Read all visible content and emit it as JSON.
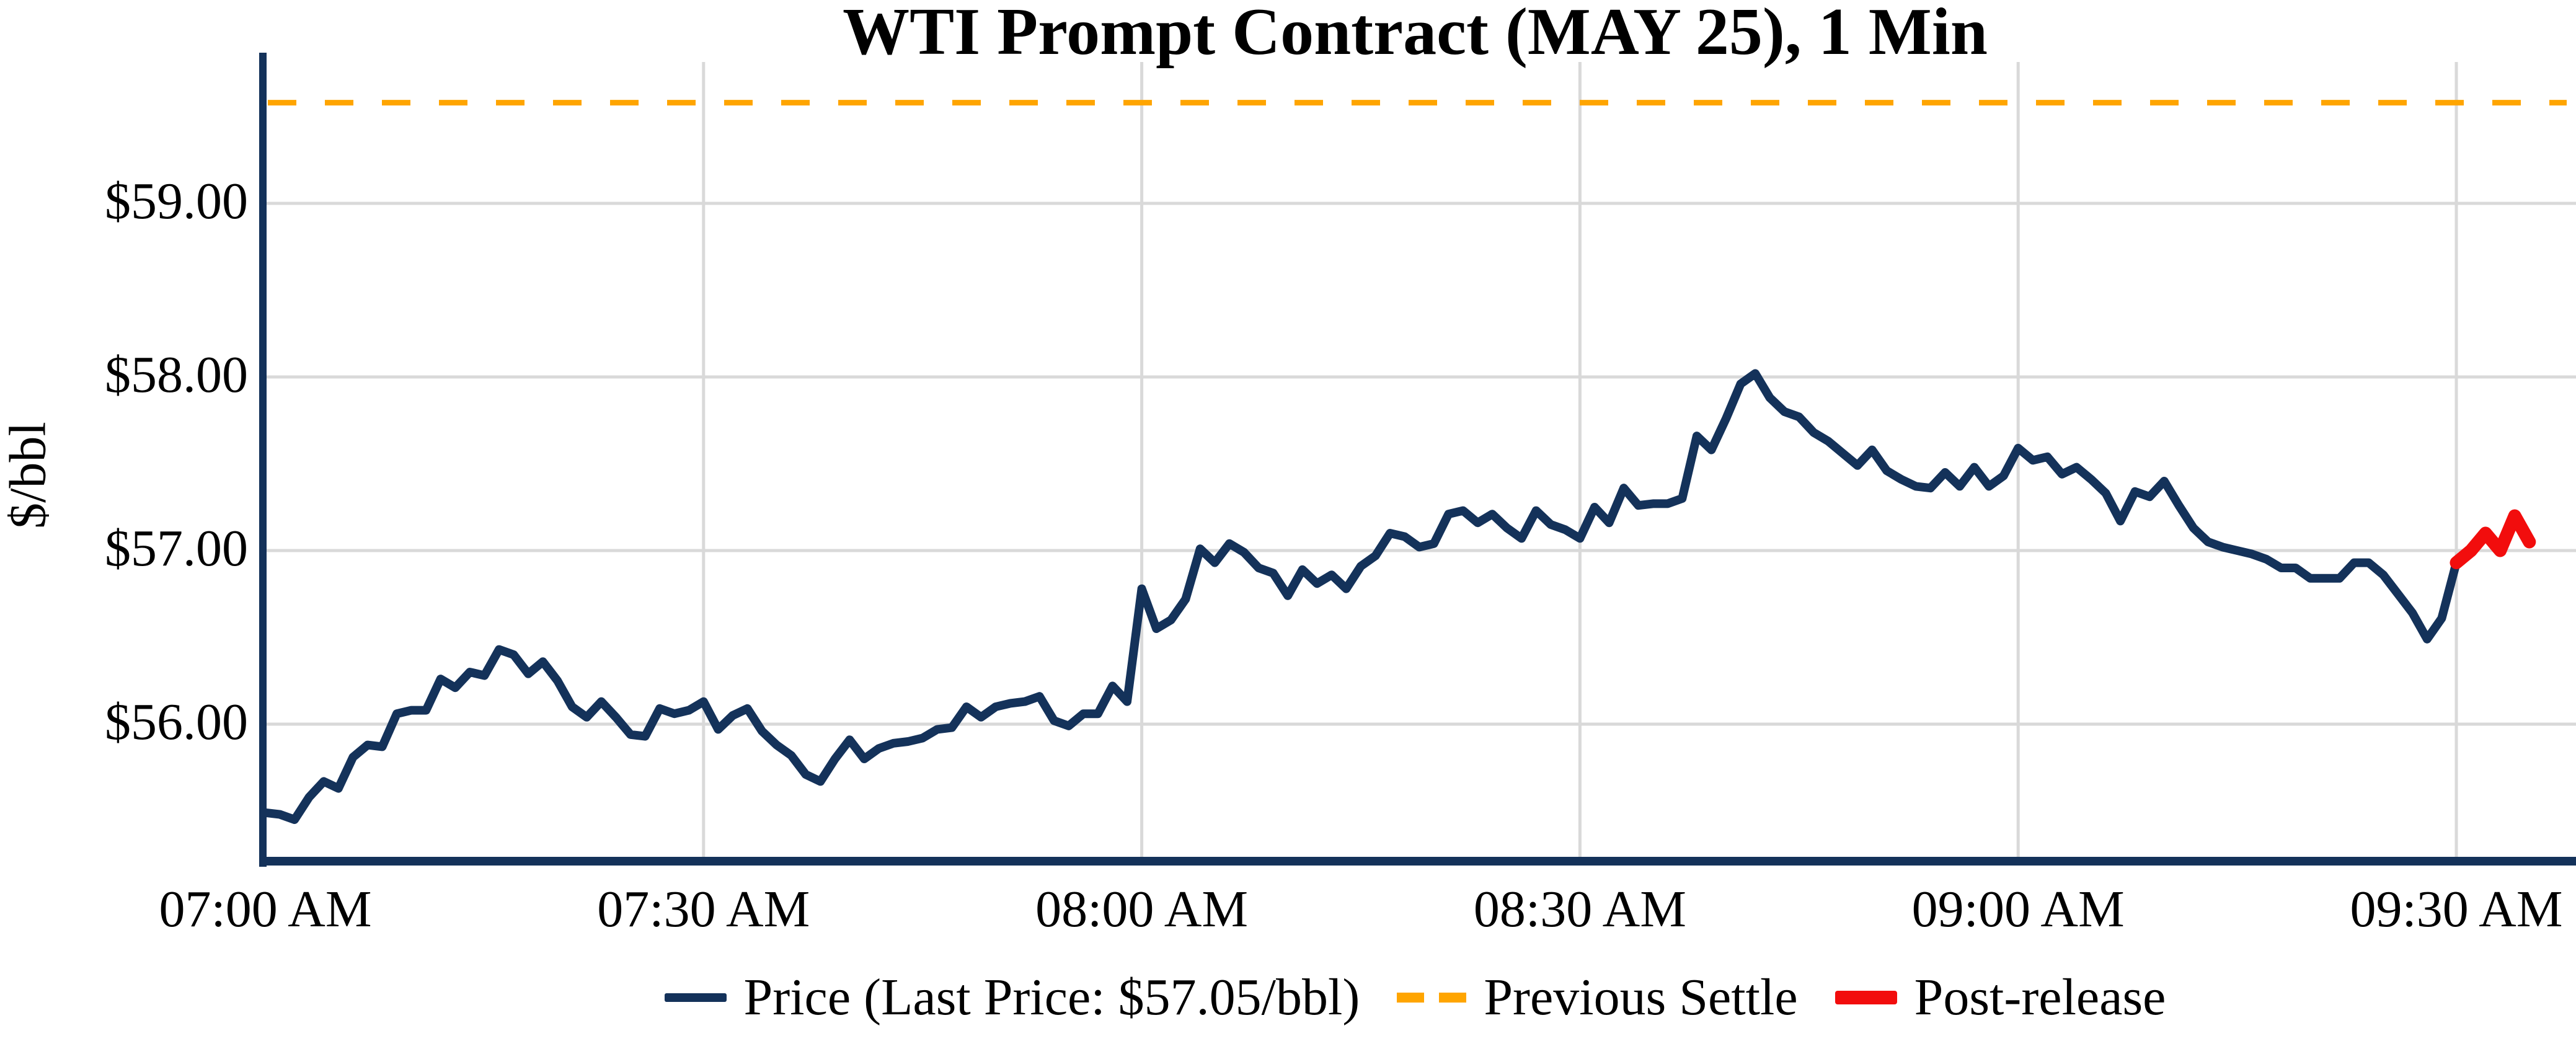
{
  "title": "WTI Prompt Contract (MAY 25), 1 Min",
  "colors": {
    "price_line": "#14325a",
    "post_release_line": "#f20d0d",
    "previous_settle_line": "#ffa500",
    "gridline": "#d9d9d9",
    "axis_spine": "#14325a",
    "text": "#000000"
  },
  "y_axis": {
    "label": "$/bbl",
    "ticks": [
      {
        "value": 59,
        "label": "$59.00"
      },
      {
        "value": 58,
        "label": "$58.00"
      },
      {
        "value": 57,
        "label": "$57.00"
      },
      {
        "value": 56,
        "label": "$56.00"
      }
    ]
  },
  "x_axis": {
    "ticks": [
      {
        "minute": 0,
        "label": "07:00 AM"
      },
      {
        "minute": 30,
        "label": "07:30 AM"
      },
      {
        "minute": 60,
        "label": "08:00 AM"
      },
      {
        "minute": 90,
        "label": "08:30 AM"
      },
      {
        "minute": 120,
        "label": "09:00 AM"
      },
      {
        "minute": 150,
        "label": "09:30 AM"
      }
    ]
  },
  "legend": {
    "price_label": "Price (Last Price: $57.05/bbl)",
    "settle_label": "Previous Settle",
    "post_label": "Post-release"
  },
  "chart_data": {
    "type": "line",
    "title": "WTI Prompt Contract (MAY 25), 1 Min",
    "xlabel": "",
    "ylabel": "$/bbl",
    "x_start_time": "07:00 AM",
    "x_end_time": "09:35 AM",
    "interval_minutes": 1,
    "xlim_minutes": [
      0,
      157
    ],
    "ylim": [
      55.3,
      59.9
    ],
    "grid": true,
    "legend_position": "bottom-center",
    "previous_settle": 59.58,
    "last_price": 57.05,
    "post_release_start_time": "09:30 AM",
    "post_release_start_index": 150,
    "series": [
      {
        "name": "Price",
        "values": [
          55.49,
          55.48,
          55.45,
          55.58,
          55.67,
          55.63,
          55.81,
          55.88,
          55.87,
          56.06,
          56.08,
          56.08,
          56.26,
          56.21,
          56.3,
          56.28,
          56.43,
          56.4,
          56.29,
          56.36,
          56.25,
          56.1,
          56.04,
          56.13,
          56.04,
          55.94,
          55.93,
          56.09,
          56.06,
          56.08,
          56.13,
          55.97,
          56.05,
          56.09,
          55.96,
          55.88,
          55.82,
          55.71,
          55.67,
          55.8,
          55.91,
          55.8,
          55.86,
          55.89,
          55.9,
          55.92,
          55.97,
          55.98,
          56.1,
          56.04,
          56.1,
          56.12,
          56.13,
          56.16,
          56.02,
          55.99,
          56.06,
          56.06,
          56.22,
          56.13,
          56.78,
          56.55,
          56.6,
          56.72,
          57.01,
          56.93,
          57.04,
          56.99,
          56.9,
          56.87,
          56.74,
          56.89,
          56.81,
          56.86,
          56.78,
          56.91,
          56.97,
          57.1,
          57.08,
          57.02,
          57.04,
          57.21,
          57.23,
          57.16,
          57.21,
          57.13,
          57.07,
          57.23,
          57.15,
          57.12,
          57.07,
          57.25,
          57.16,
          57.36,
          57.26,
          57.27,
          57.27,
          57.3,
          57.66,
          57.58,
          57.76,
          57.96,
          58.02,
          57.88,
          57.8,
          57.77,
          57.68,
          57.63,
          57.56,
          57.49,
          57.58,
          57.46,
          57.41,
          57.37,
          57.36,
          57.45,
          57.37,
          57.48,
          57.37,
          57.43,
          57.59,
          57.52,
          57.54,
          57.44,
          57.48,
          57.41,
          57.33,
          57.17,
          57.34,
          57.31,
          57.4,
          57.26,
          57.13,
          57.05,
          57.02,
          57.0,
          56.98,
          56.95,
          56.9,
          56.9,
          56.84,
          56.84,
          56.84,
          56.93,
          56.93,
          56.86,
          56.75,
          56.64,
          56.49,
          56.61,
          56.93,
          57.0,
          57.1,
          57.0,
          57.2,
          57.05
        ]
      },
      {
        "name": "Post-release",
        "values": [
          56.93,
          57.0,
          57.1,
          57.0,
          57.2,
          57.05
        ]
      }
    ]
  }
}
